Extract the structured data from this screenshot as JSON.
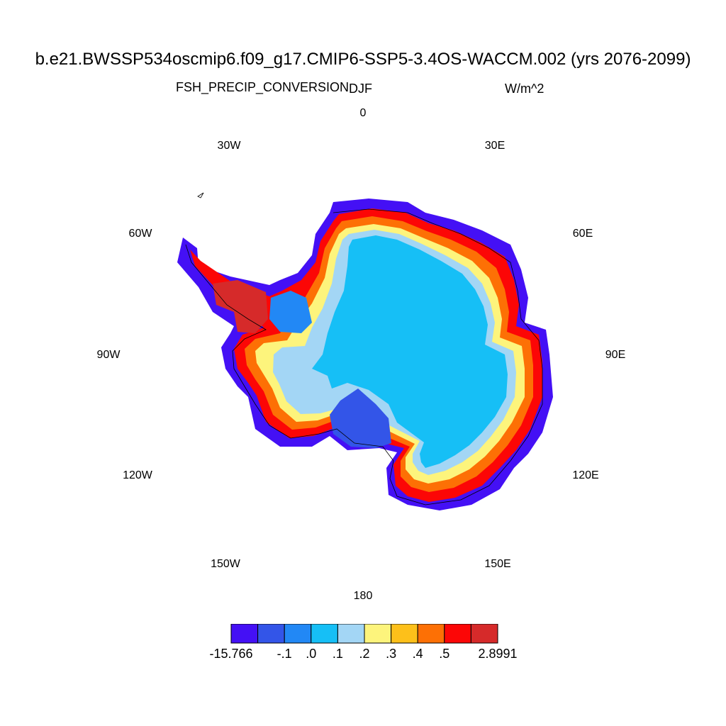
{
  "title": "b.e21.BWSSP534oscmip6.f09_g17.CMIP6-SSP5-3.4OS-WACCM.002 (yrs 2076-2099)",
  "variable": "FSH_PRECIP_CONVERSION",
  "season": "DJF",
  "units": "W/m^2",
  "longitude_labels": [
    {
      "id": "lon-0",
      "text": "0"
    },
    {
      "id": "lon-30e",
      "text": "30E"
    },
    {
      "id": "lon-60e",
      "text": "60E"
    },
    {
      "id": "lon-90e",
      "text": "90E"
    },
    {
      "id": "lon-120e",
      "text": "120E"
    },
    {
      "id": "lon-150e",
      "text": "150E"
    },
    {
      "id": "lon-180",
      "text": "180"
    },
    {
      "id": "lon-150w",
      "text": "150W"
    },
    {
      "id": "lon-120w",
      "text": "120W"
    },
    {
      "id": "lon-90w",
      "text": "90W"
    },
    {
      "id": "lon-60w",
      "text": "60W"
    },
    {
      "id": "lon-30w",
      "text": "30W"
    }
  ],
  "colorbar": {
    "colors": [
      "#4410f5",
      "#3355e8",
      "#2288f5",
      "#16bff6",
      "#a3d6f5",
      "#fdf47c",
      "#fdc01a",
      "#fd7005",
      "#fc0606",
      "#d62a2a"
    ],
    "tick_labels": [
      "-15.766",
      "-.1",
      ".0",
      ".1",
      ".2",
      ".3",
      ".4",
      ".5",
      "2.8991"
    ]
  }
}
